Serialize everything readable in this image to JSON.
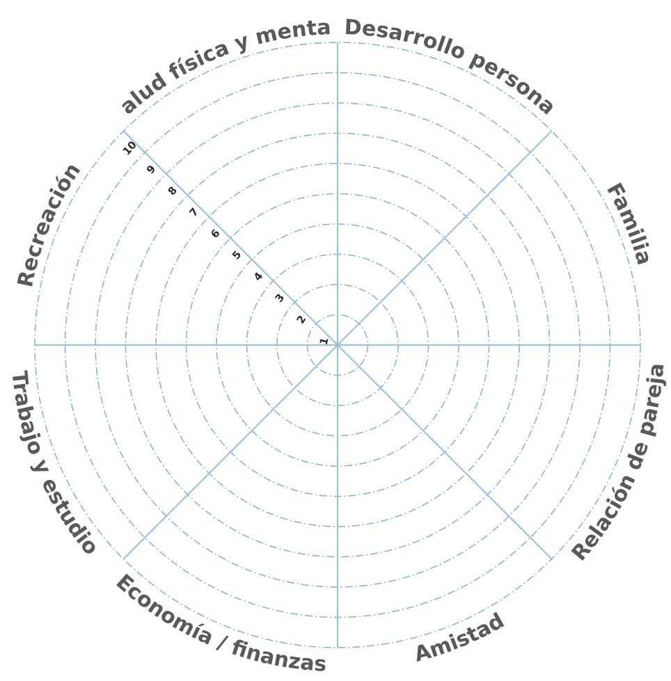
{
  "wheel": {
    "segments": [
      "Desarrollo personal",
      "Familia",
      "Relación de pareja",
      "Amistad",
      "Economía / finanzas",
      "Trabajo y estudio",
      "Recreación",
      "Salud física y mental"
    ],
    "scale": [
      "1",
      "2",
      "3",
      "4",
      "5",
      "6",
      "7",
      "8",
      "9",
      "10"
    ],
    "colors": {
      "grid": "#8fb4cc",
      "spokes": "#9fc0d6",
      "labels": "#58595b",
      "numbers": "#2b2b2b"
    }
  }
}
